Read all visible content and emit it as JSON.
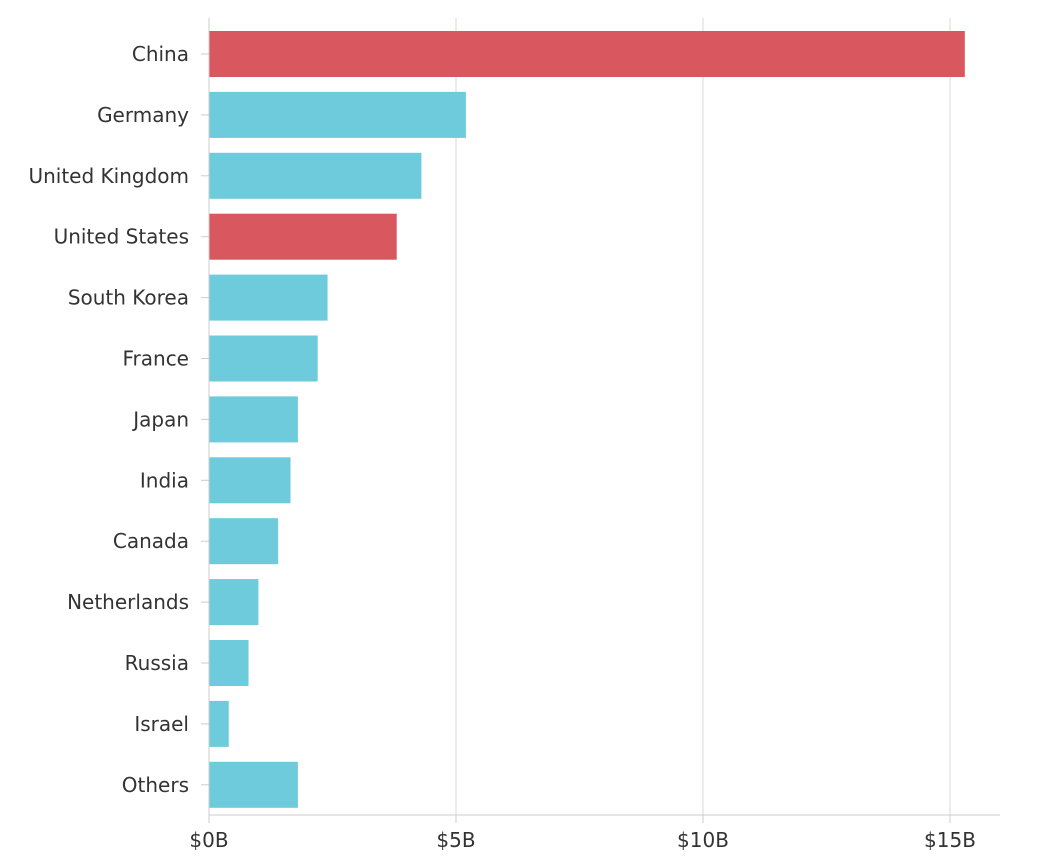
{
  "chart_data": {
    "type": "bar",
    "orientation": "horizontal",
    "title": "",
    "xlabel": "",
    "ylabel": "",
    "categories": [
      "China",
      "Germany",
      "United Kingdom",
      "United States",
      "South Korea",
      "France",
      "Japan",
      "India",
      "Canada",
      "Netherlands",
      "Russia",
      "Israel",
      "Others"
    ],
    "values": [
      15.3,
      5.2,
      4.3,
      3.8,
      2.4,
      2.2,
      1.8,
      1.65,
      1.4,
      1.0,
      0.8,
      0.4,
      1.8
    ],
    "highlighted": [
      true,
      false,
      false,
      true,
      false,
      false,
      false,
      false,
      false,
      false,
      false,
      false,
      false
    ],
    "xlim": [
      0,
      16
    ],
    "xticks": [
      0,
      5,
      10,
      15
    ],
    "xtick_labels": [
      "$0B",
      "$5B",
      "$10B",
      "$15B"
    ],
    "grid": true,
    "legend": "none",
    "colors": {
      "highlight": "#d9575e",
      "default": "#6dcbdc",
      "grid": "#d9d9d9",
      "axis": "#cccccc",
      "text": "#333333"
    }
  }
}
